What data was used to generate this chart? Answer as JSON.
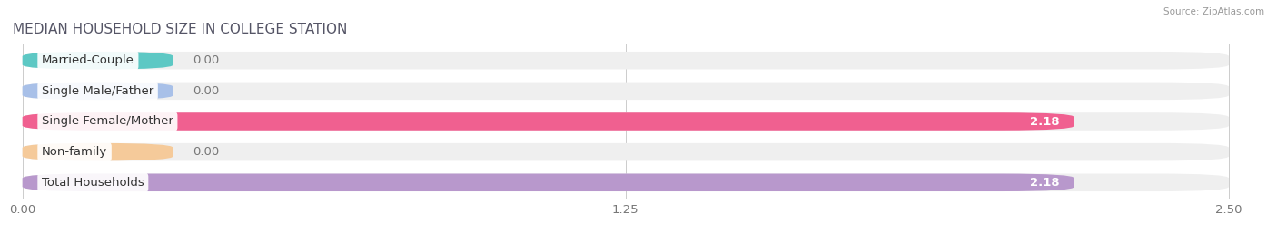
{
  "title": "MEDIAN HOUSEHOLD SIZE IN COLLEGE STATION",
  "source": "Source: ZipAtlas.com",
  "categories": [
    "Married-Couple",
    "Single Male/Father",
    "Single Female/Mother",
    "Non-family",
    "Total Households"
  ],
  "values": [
    0.0,
    0.0,
    2.18,
    0.0,
    2.18
  ],
  "bar_colors": [
    "#5dc8c4",
    "#a8c0e8",
    "#f06090",
    "#f5ca9a",
    "#b898cc"
  ],
  "bar_bg_color": "#efefef",
  "xlim_max": 2.5,
  "xticks": [
    0.0,
    1.25,
    2.5
  ],
  "xtick_labels": [
    "0.00",
    "1.25",
    "2.50"
  ],
  "label_fontsize": 9.5,
  "title_fontsize": 11,
  "value_color_nonzero": "#ffffff",
  "value_color_zero": "#777777",
  "background_color": "#ffffff",
  "title_color": "#555566",
  "source_color": "#999999"
}
